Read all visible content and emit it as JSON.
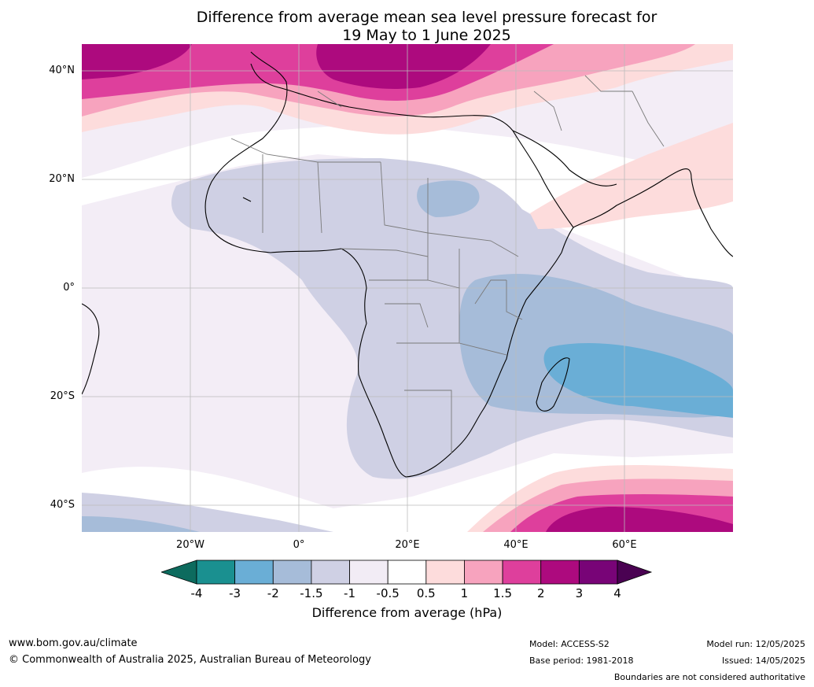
{
  "title": {
    "line1": "Difference from average mean sea level pressure forecast for",
    "line2": "19 May to 1 June 2025"
  },
  "axes": {
    "lat_labels": [
      "40°N",
      "20°N",
      "0°",
      "20°S",
      "40°S"
    ],
    "lon_labels": [
      "20°W",
      "0°",
      "20°E",
      "40°E",
      "60°E"
    ]
  },
  "colorbar": {
    "ticks": [
      "-4",
      "-3",
      "-2",
      "-1.5",
      "-1",
      "-0.5",
      "0.5",
      "1",
      "1.5",
      "2",
      "3",
      "4"
    ],
    "colors": [
      "#1a9090",
      "#6aaed6",
      "#a6bcd9",
      "#cfd0e4",
      "#f2ecf5",
      "#ffffff",
      "#fddcdc",
      "#f7a3be",
      "#de3f9c",
      "#ad0a7e",
      "#780477"
    ],
    "under_color": "#0d6b5e",
    "over_color": "#4a0252",
    "label": "Difference from average (hPa)"
  },
  "footer": {
    "url": "www.bom.gov.au/climate",
    "copyright": "© Commonwealth of Australia 2025, Australian Bureau of Meteorology",
    "model": "Model: ACCESS-S2",
    "base_period": "Base period: 1981-2018",
    "model_run": "Model run: 12/05/2025",
    "issued": "Issued: 14/05/2025",
    "disclaimer": "Boundaries are not considered authoritative"
  }
}
